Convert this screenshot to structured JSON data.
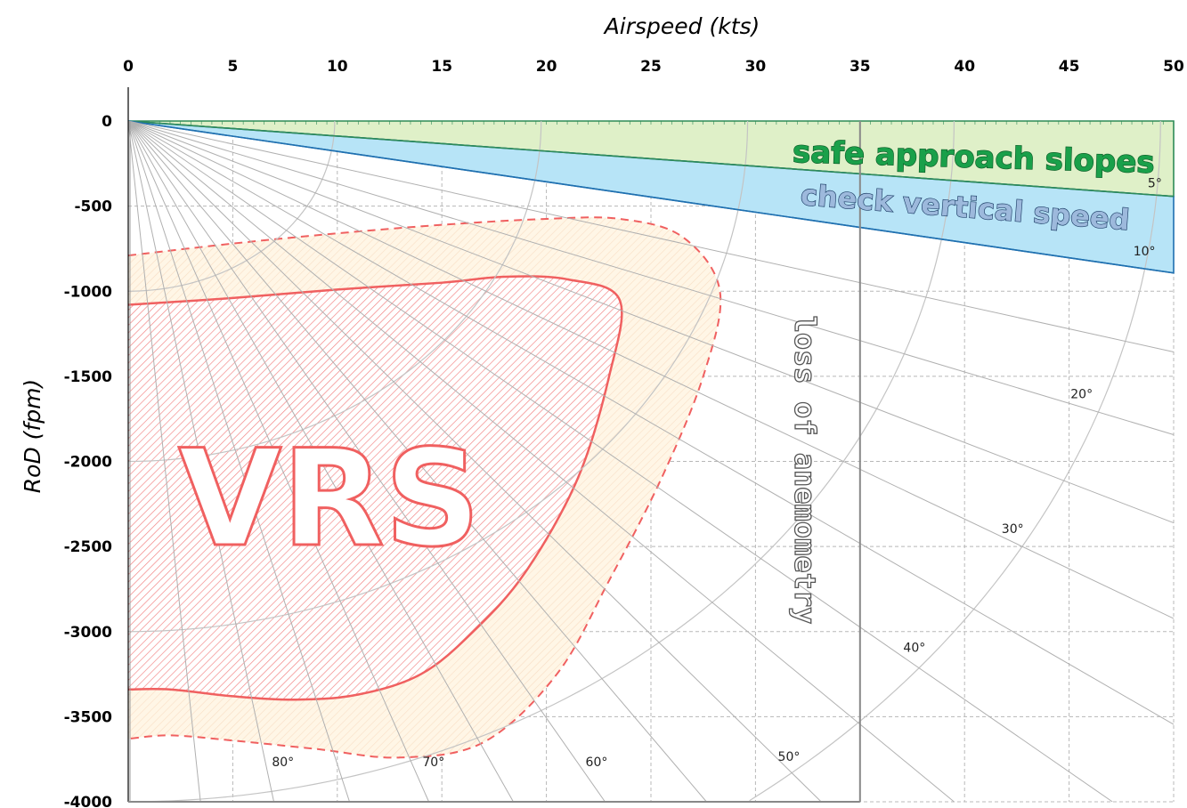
{
  "chart_data": {
    "type": "line",
    "xlabel": "Airspeed (kts)",
    "ylabel": "RoD (fpm)",
    "xlim": [
      0,
      50
    ],
    "ylim": [
      -4000,
      0
    ],
    "x_ticks": [
      "0",
      "5",
      "10",
      "15",
      "20",
      "25",
      "30",
      "35",
      "40",
      "45",
      "50"
    ],
    "y_ticks": [
      "0",
      "-500",
      "-1000",
      "-1500",
      "-2000",
      "-2500",
      "-3000",
      "-3500",
      "-4000"
    ],
    "grid": true,
    "x_axis_position": "top",
    "slope_lines_deg": [
      5,
      10,
      15,
      20,
      25,
      30,
      35,
      40,
      45,
      50,
      55,
      60,
      65,
      70,
      75,
      80,
      85
    ],
    "slope_labels": [
      {
        "text": "5°",
        "x": 49.1,
        "y": -390
      },
      {
        "text": "10°",
        "x": 48.6,
        "y": -790
      },
      {
        "text": "20°",
        "x": 45.6,
        "y": -1630
      },
      {
        "text": "30°",
        "x": 42.3,
        "y": -2420
      },
      {
        "text": "40°",
        "x": 37.6,
        "y": -3120
      },
      {
        "text": "50°",
        "x": 31.6,
        "y": -3760
      },
      {
        "text": "60°",
        "x": 22.4,
        "y": -3790
      },
      {
        "text": "70°",
        "x": 14.6,
        "y": -3790
      },
      {
        "text": "80°",
        "x": 7.4,
        "y": -3790
      }
    ],
    "total_speed_arcs_fpm": [
      1000,
      2000,
      3000,
      4000,
      5000
    ],
    "regions": [
      {
        "name": "safe approach slopes",
        "from_deg": 0,
        "to_deg": 5,
        "color": "#dff0c8"
      },
      {
        "name": "check vertical speed",
        "from_deg": 5,
        "to_deg": 10,
        "color": "#b7e4f7"
      }
    ],
    "vrs_inner_boundary": [
      [
        0,
        -1080
      ],
      [
        5,
        -1040
      ],
      [
        10,
        -990
      ],
      [
        15,
        -950
      ],
      [
        18,
        -915
      ],
      [
        21,
        -930
      ],
      [
        23.5,
        -1050
      ],
      [
        23,
        -1500
      ],
      [
        21.5,
        -2100
      ],
      [
        19,
        -2650
      ],
      [
        16.5,
        -3000
      ],
      [
        14,
        -3250
      ],
      [
        11,
        -3370
      ],
      [
        8,
        -3400
      ],
      [
        5,
        -3380
      ],
      [
        2,
        -3340
      ],
      [
        0,
        -3340
      ]
    ],
    "vrs_outer_boundary": [
      [
        0,
        -790
      ],
      [
        5,
        -720
      ],
      [
        10,
        -660
      ],
      [
        15,
        -610
      ],
      [
        20,
        -575
      ],
      [
        23.5,
        -575
      ],
      [
        26.5,
        -680
      ],
      [
        28.3,
        -1000
      ],
      [
        27.5,
        -1500
      ],
      [
        25.5,
        -2100
      ],
      [
        23,
        -2700
      ],
      [
        20.5,
        -3250
      ],
      [
        17,
        -3650
      ],
      [
        13,
        -3740
      ],
      [
        9,
        -3690
      ],
      [
        5,
        -3640
      ],
      [
        2,
        -3610
      ],
      [
        0,
        -3630
      ]
    ],
    "anemometry_limit_kts": 35,
    "annotations": {
      "safe": "safe approach slopes",
      "check": "check vertical speed",
      "vrs": "VRS",
      "anemometry": "loss of anemometry"
    },
    "colors": {
      "grid": "#b8b8b8",
      "slope_line": "#b0b0b0",
      "arc": "#c4c4c4",
      "vrs_line": "#f06060",
      "vrs_hatch": "#f28080",
      "vrs_outer_fill": "#fff6e6",
      "safe_fill": "#dff0c8",
      "safe_line": "#2e8b57",
      "check_fill": "#b7e4f7",
      "check_line": "#1f70b0",
      "anemometry_line": "#888888"
    }
  }
}
